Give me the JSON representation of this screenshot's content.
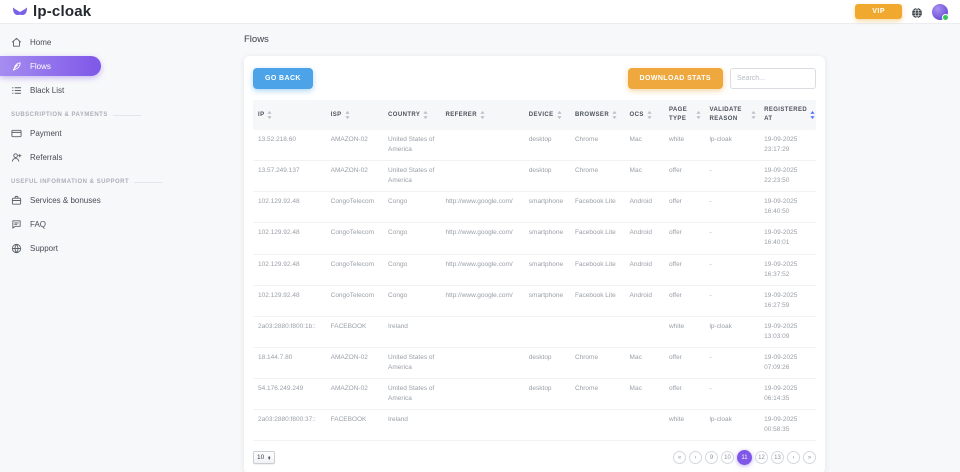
{
  "header": {
    "logo_text": "lp-cloak",
    "vip_label": "VIP"
  },
  "sidebar": {
    "sections": [
      {
        "label": null,
        "items": [
          {
            "id": "home",
            "label": "Home",
            "icon": "home",
            "active": false
          },
          {
            "id": "flows",
            "label": "Flows",
            "icon": "flows",
            "active": true
          },
          {
            "id": "black-list",
            "label": "Black List",
            "icon": "list",
            "active": false
          }
        ]
      },
      {
        "label": "SUBSCRIPTION & PAYMENTS",
        "items": [
          {
            "id": "payment",
            "label": "Payment",
            "icon": "card",
            "active": false
          },
          {
            "id": "referrals",
            "label": "Referrals",
            "icon": "person-add",
            "active": false
          }
        ]
      },
      {
        "label": "USEFUL INFORMATION & SUPPORT",
        "items": [
          {
            "id": "services-bonuses",
            "label": "Services & bonuses",
            "icon": "briefcase",
            "active": false
          },
          {
            "id": "faq",
            "label": "FAQ",
            "icon": "chat",
            "active": false
          },
          {
            "id": "support",
            "label": "Support",
            "icon": "globe",
            "active": false
          }
        ]
      }
    ]
  },
  "main": {
    "page_title": "Flows",
    "go_back_label": "GO BACK",
    "download_stats_label": "DOWNLOAD STATS",
    "search_placeholder": "Search...",
    "table": {
      "columns": [
        {
          "label": "IP",
          "sorted": false
        },
        {
          "label": "ISP",
          "sorted": false
        },
        {
          "label": "COUNTRY",
          "sorted": false
        },
        {
          "label": "REFERER",
          "sorted": false
        },
        {
          "label": "DEVICE",
          "sorted": false
        },
        {
          "label": "BROWSER",
          "sorted": false
        },
        {
          "label": "OCS",
          "sorted": false
        },
        {
          "label": "PAGE TYPE",
          "sorted": false
        },
        {
          "label": "VALIDATE REASON",
          "sorted": false
        },
        {
          "label": "REGISTERED AT",
          "sorted": true
        }
      ],
      "rows": [
        [
          "13.52.218.60",
          "AMAZON-02",
          "United States of America",
          "",
          "desktop",
          "Chrome",
          "Mac",
          "white",
          "lp-cloak",
          "19-09-2025 23:17:29"
        ],
        [
          "13.57.249.137",
          "AMAZON-02",
          "United States of America",
          "",
          "desktop",
          "Chrome",
          "Mac",
          "offer",
          "-",
          "19-09-2025 22:23:50"
        ],
        [
          "102.129.92.48",
          "CongoTelecom",
          "Congo",
          "http://www.google.com/",
          "smartphone",
          "Facebook Lite",
          "Android",
          "offer",
          "-",
          "19-09-2025 16:40:50"
        ],
        [
          "102.129.92.48",
          "CongoTelecom",
          "Congo",
          "http://www.google.com/",
          "smartphone",
          "Facebook Lite",
          "Android",
          "offer",
          "-",
          "19-09-2025 16:40:01"
        ],
        [
          "102.129.92.48",
          "CongoTelecom",
          "Congo",
          "http://www.google.com/",
          "smartphone",
          "Facebook Lite",
          "Android",
          "offer",
          "-",
          "19-09-2025 16:37:52"
        ],
        [
          "102.129.92.48",
          "CongoTelecom",
          "Congo",
          "http://www.google.com/",
          "smartphone",
          "Facebook Lite",
          "Android",
          "offer",
          "-",
          "19-09-2025 16:27:59"
        ],
        [
          "2a03:2880:f800:1b::",
          "FACEBOOK",
          "Ireland",
          "",
          "",
          "",
          "",
          "white",
          "lp-cloak",
          "19-09-2025 13:03:09"
        ],
        [
          "18.144.7.80",
          "AMAZON-02",
          "United States of America",
          "",
          "desktop",
          "Chrome",
          "Mac",
          "offer",
          "-",
          "19-09-2025 07:09:26"
        ],
        [
          "54.176.249.249",
          "AMAZON-02",
          "United States of America",
          "",
          "desktop",
          "Chrome",
          "Mac",
          "offer",
          "-",
          "19-09-2025 06:14:35"
        ],
        [
          "2a03:2880:f800:37::",
          "FACEBOOK",
          "Ireland",
          "",
          "",
          "",
          "",
          "white",
          "lp-cloak",
          "19-09-2025 00:58:35"
        ]
      ]
    },
    "pagination": {
      "per_page": "10",
      "first_label": "«",
      "prev_label": "‹",
      "next_label": "›",
      "last_label": "»",
      "pages": [
        "9",
        "10",
        "11",
        "12",
        "13"
      ],
      "active_page": "11"
    }
  },
  "colors": {
    "accent_purple": "#7e57e8",
    "button_blue": "#4da3e8",
    "button_orange": "#efa83d",
    "vip_orange": "#f0a92e",
    "active_sort_blue": "#4a6cf7",
    "status_green": "#35c759"
  }
}
